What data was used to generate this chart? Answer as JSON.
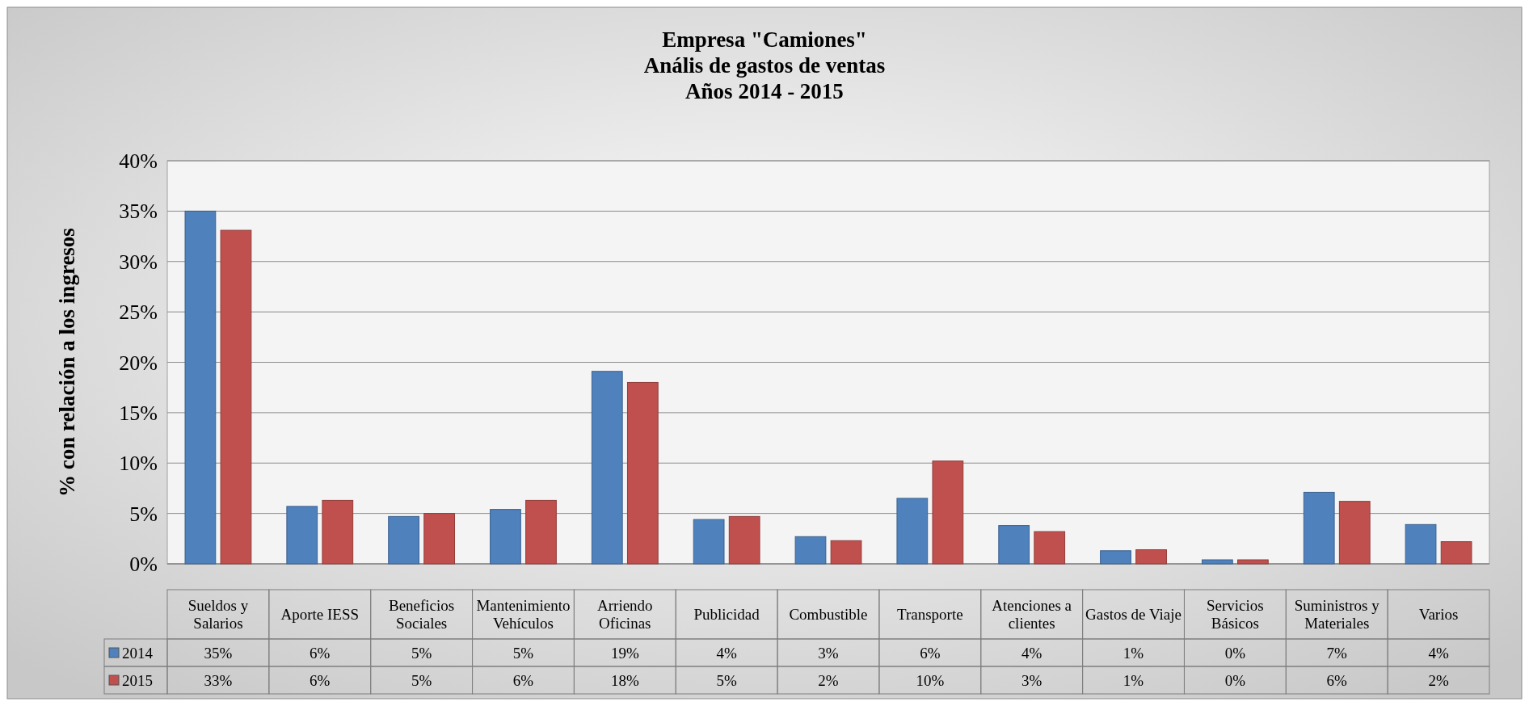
{
  "chart_data": {
    "type": "bar",
    "title": "Empresa \"Camiones\"\nAnális de gastos de ventas\nAños 2014 - 2015",
    "ylabel": "% con relación a los ingresos",
    "categories": [
      "Sueldos y Salarios",
      "Aporte IESS",
      "Beneficios Sociales",
      "Mantenimiento Vehículos",
      "Arriendo Oficinas",
      "Publicidad",
      "Combustible",
      "Transporte",
      "Atenciones a clientes",
      "Gastos de Viaje",
      "Servicios Básicos",
      "Suministros y Materiales",
      "Varios"
    ],
    "series": [
      {
        "name": "2014",
        "color": "#4f81bd",
        "values": [
          35,
          5.7,
          4.7,
          5.4,
          19.1,
          4.4,
          2.7,
          6.5,
          3.8,
          1.3,
          0.4,
          7.1,
          3.9
        ],
        "value_labels": [
          "35%",
          "6%",
          "5%",
          "5%",
          "19%",
          "4%",
          "3%",
          "6%",
          "4%",
          "1%",
          "0%",
          "7%",
          "4%"
        ]
      },
      {
        "name": "2015",
        "color": "#c0504d",
        "values": [
          33.1,
          6.3,
          5,
          6.3,
          18,
          4.7,
          2.3,
          10.2,
          3.2,
          1.4,
          0.4,
          6.2,
          2.2
        ],
        "value_labels": [
          "33%",
          "6%",
          "5%",
          "6%",
          "18%",
          "5%",
          "2%",
          "10%",
          "3%",
          "1%",
          "0%",
          "6%",
          "2%"
        ]
      }
    ],
    "ylim": [
      0,
      40
    ],
    "yticks": [
      {
        "value": 0,
        "label": "0%"
      },
      {
        "value": 5,
        "label": "5%"
      },
      {
        "value": 10,
        "label": "10%"
      },
      {
        "value": 15,
        "label": "15%"
      },
      {
        "value": 20,
        "label": "20%"
      },
      {
        "value": 25,
        "label": "25%"
      },
      {
        "value": 30,
        "label": "30%"
      },
      {
        "value": 35,
        "label": "35%"
      },
      {
        "value": 40,
        "label": "40%"
      }
    ],
    "grid": "y",
    "legend": "bottom"
  }
}
